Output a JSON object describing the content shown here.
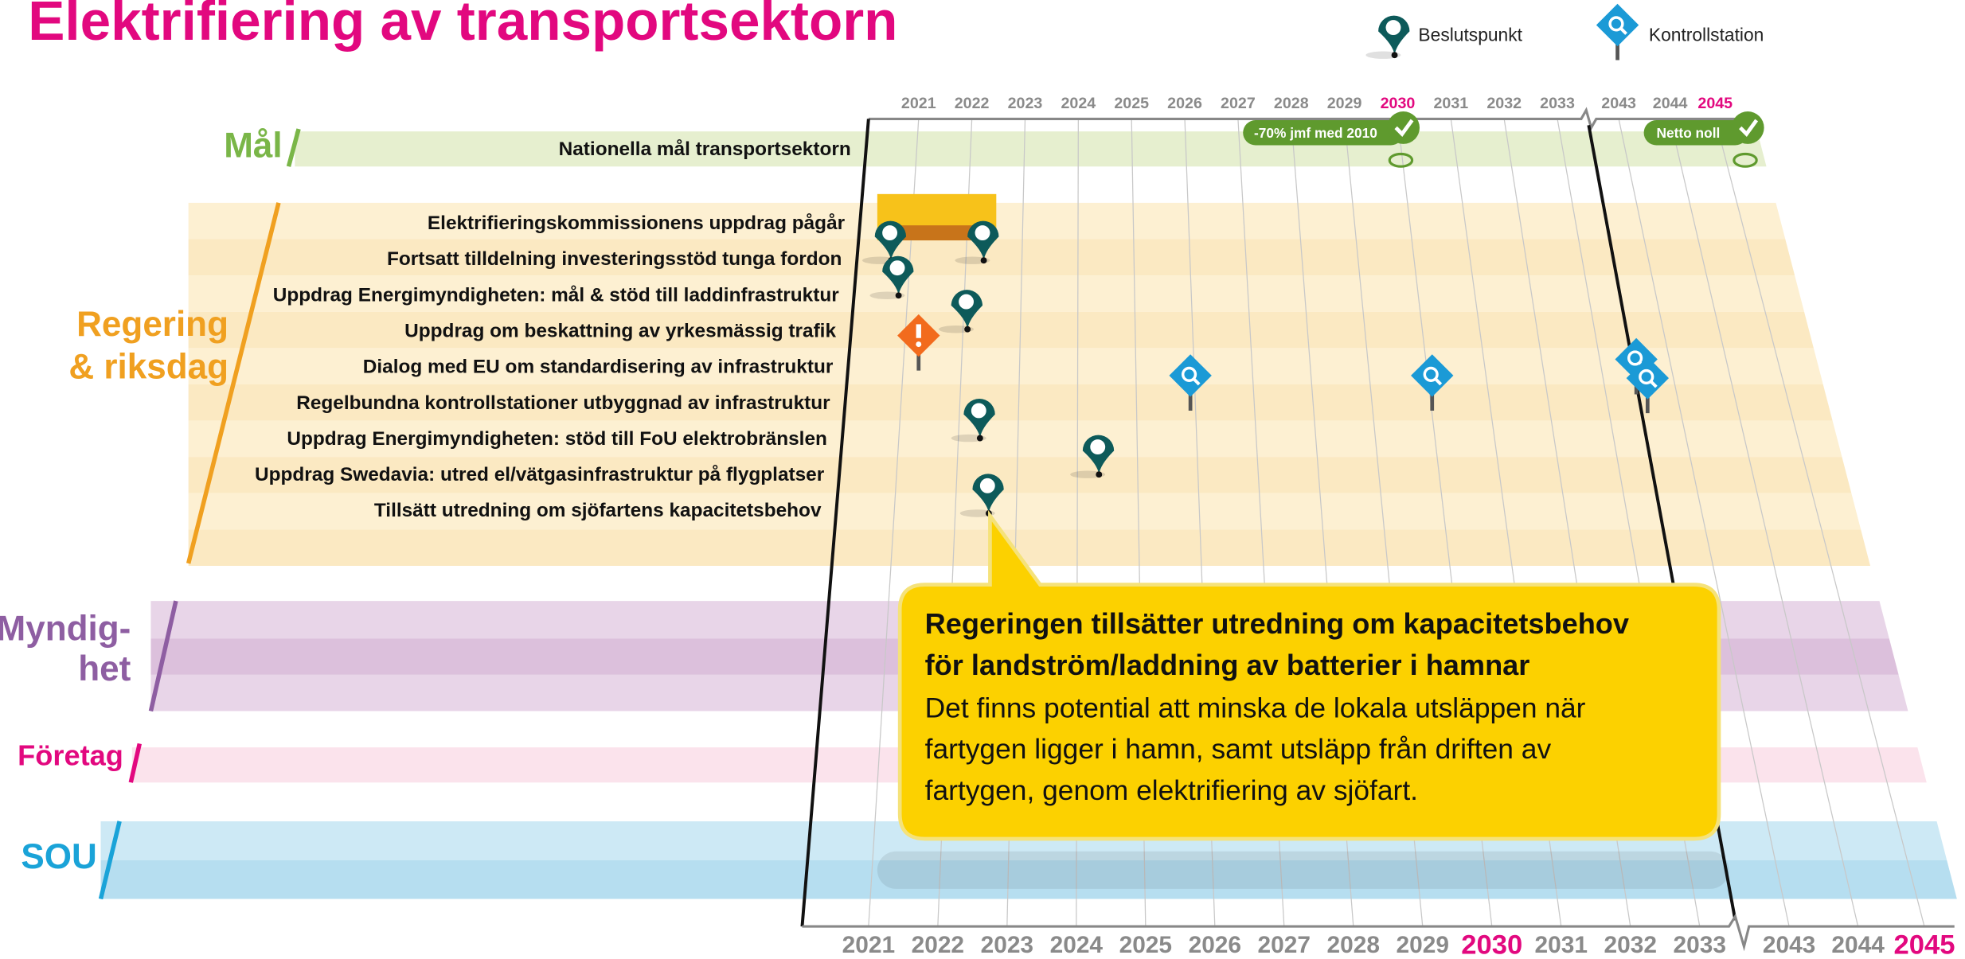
{
  "title": "Elektrifiering av transportsektorn",
  "legend": [
    "Beslutspunkt",
    "Kontrollstation"
  ],
  "years": [
    "2021",
    "2022",
    "2023",
    "2024",
    "2025",
    "2026",
    "2027",
    "2028",
    "2029",
    "2030",
    "2031",
    "2032",
    "2033",
    "2043",
    "2044",
    "2045"
  ],
  "groups": [
    {
      "label": [
        "Mål"
      ]
    },
    {
      "label": [
        "Regering",
        "& riksdag"
      ]
    },
    {
      "label": [
        "Myndig-",
        "het"
      ]
    },
    {
      "label": [
        "Företag"
      ]
    },
    {
      "label": [
        "SOU"
      ]
    }
  ],
  "goal_row": "Nationella mål transportsektorn",
  "goal_badges": [
    "-70% jmf med 2010",
    "Netto noll"
  ],
  "rows": [
    "Elektrifieringskommissionens uppdrag pågår",
    "Fortsatt tilldelning investeringsstöd tunga fordon",
    "Uppdrag Energimyndigheten: mål & stöd till laddinfrastruktur",
    "Uppdrag om beskattning av yrkesmässig trafik",
    "Dialog med EU om standardisering av infrastruktur",
    "Regelbundna kontrollstationer utbyggnad av infrastruktur",
    "Uppdrag Energimyndigheten: stöd till FoU elektrobränslen",
    "Uppdrag Swedavia: utred el/vätgasinfrastruktur på flygplatser",
    "Tillsätt utredning om sjöfartens kapacitetsbehov"
  ],
  "callout": {
    "title": [
      "Regeringen tillsätter utredning om kapacitetsbehov",
      "för landström/laddning av batterier i hamnar"
    ],
    "body": [
      "Det finns potential att minska de lokala utsläppen när",
      "fartygen ligger i hamn, samt utsläpp från driften av",
      "fartygen, genom elektrifiering av sjöfart."
    ]
  }
}
